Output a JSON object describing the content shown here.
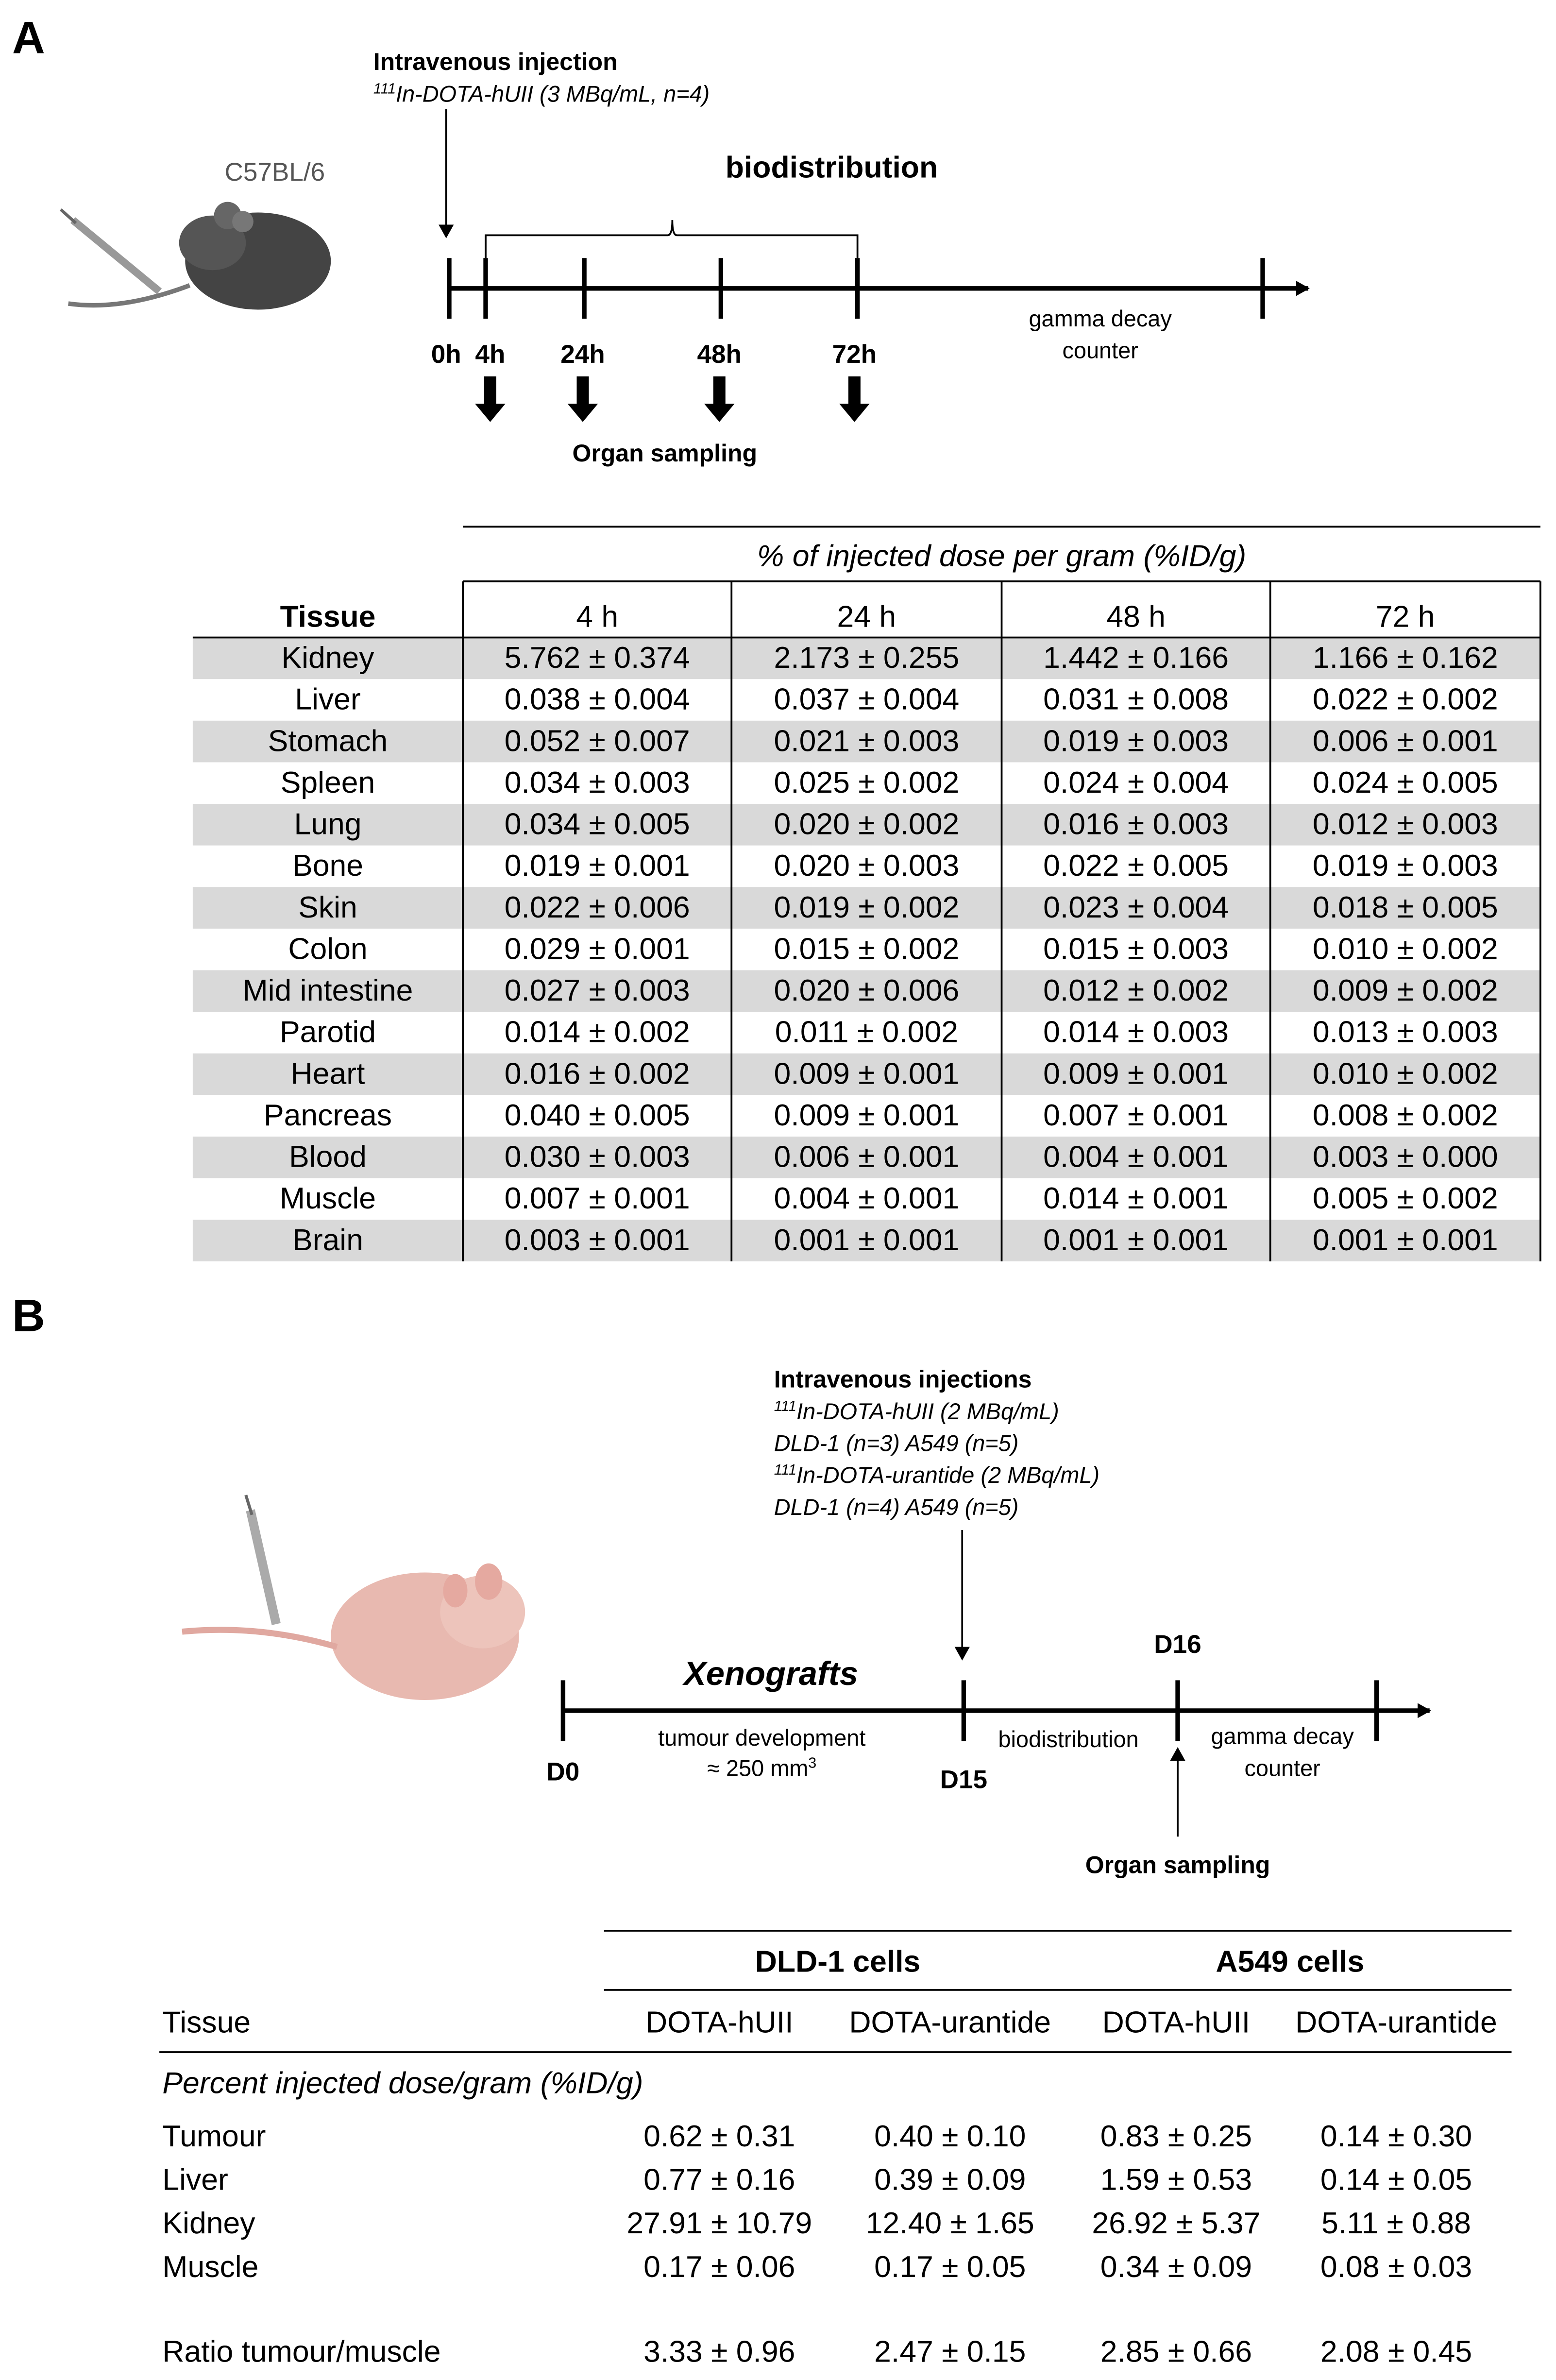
{
  "panel_a": {
    "label": "A",
    "strain": "C57BL/6",
    "injection": {
      "title": "Intravenous injection",
      "line": {
        "sup": "111",
        "text": "In-DOTA-hUII  (3 MBq/mL, n=4)"
      }
    },
    "phase": "biodistribution",
    "timepoints": [
      "0h",
      "4h",
      "24h",
      "48h",
      "72h"
    ],
    "counter": [
      "gamma decay",
      "counter"
    ],
    "sampling": "Organ sampling",
    "table": {
      "caption": "% of injected dose per gram (%ID/g)",
      "columns": [
        "Tissue",
        "4 h",
        "24 h",
        "48 h",
        "72 h"
      ],
      "rows": [
        [
          "Kidney",
          "5.762 ± 0.374",
          "2.173 ± 0.255",
          "1.442 ± 0.166",
          "1.166 ± 0.162"
        ],
        [
          "Liver",
          "0.038 ± 0.004",
          "0.037 ± 0.004",
          "0.031 ± 0.008",
          "0.022 ± 0.002"
        ],
        [
          "Stomach",
          "0.052 ± 0.007",
          "0.021 ± 0.003",
          "0.019 ± 0.003",
          "0.006 ± 0.001"
        ],
        [
          "Spleen",
          "0.034 ± 0.003",
          "0.025 ± 0.002",
          "0.024 ± 0.004",
          "0.024 ± 0.005"
        ],
        [
          "Lung",
          "0.034 ± 0.005",
          "0.020 ± 0.002",
          "0.016 ± 0.003",
          "0.012 ± 0.003"
        ],
        [
          "Bone",
          "0.019 ± 0.001",
          "0.020 ± 0.003",
          "0.022 ± 0.005",
          "0.019 ± 0.003"
        ],
        [
          "Skin",
          "0.022 ± 0.006",
          "0.019 ± 0.002",
          "0.023 ± 0.004",
          "0.018 ± 0.005"
        ],
        [
          "Colon",
          "0.029 ± 0.001",
          "0.015 ± 0.002",
          "0.015 ± 0.003",
          "0.010 ± 0.002"
        ],
        [
          "Mid intestine",
          "0.027 ± 0.003",
          "0.020 ± 0.006",
          "0.012 ± 0.002",
          "0.009 ± 0.002"
        ],
        [
          "Parotid",
          "0.014 ± 0.002",
          "0.011 ± 0.002",
          "0.014 ± 0.003",
          "0.013 ± 0.003"
        ],
        [
          "Heart",
          "0.016 ± 0.002",
          "0.009 ± 0.001",
          "0.009 ± 0.001",
          "0.010 ± 0.002"
        ],
        [
          "Pancreas",
          "0.040 ± 0.005",
          "0.009 ± 0.001",
          "0.007 ± 0.001",
          "0.008 ± 0.002"
        ],
        [
          "Blood",
          "0.030 ± 0.003",
          "0.006 ± 0.001",
          "0.004 ± 0.001",
          "0.003 ± 0.000"
        ],
        [
          "Muscle",
          "0.007 ± 0.001",
          "0.004 ± 0.001",
          "0.014 ± 0.001",
          "0.005 ± 0.002"
        ],
        [
          "Brain",
          "0.003 ± 0.001",
          "0.001 ± 0.001",
          "0.001 ± 0.001",
          "0.001 ± 0.001"
        ]
      ]
    }
  },
  "panel_b": {
    "label": "B",
    "injection": {
      "title": "Intravenous injections",
      "lines": [
        {
          "sup": "111",
          "text": "In-DOTA-hUII  (2 MBq/mL)"
        },
        {
          "text": "DLD-1  (n=3)  A549  (n=5)"
        },
        {
          "sup": "111",
          "text": "In-DOTA-urantide  (2 MBq/mL)"
        },
        {
          "text": "DLD-1  (n=4)  A549  (n=5)"
        }
      ]
    },
    "xenografts": "Xenografts",
    "days": {
      "d0": "D0",
      "d15": "D15",
      "d16": "D16"
    },
    "development": [
      "tumour development",
      {
        "text": "≈ 250 mm",
        "sup": "3"
      }
    ],
    "phase": "biodistribution",
    "counter": [
      "gamma decay",
      "counter"
    ],
    "sampling": "Organ sampling",
    "table": {
      "groups": [
        "DLD-1 cells",
        "A549 cells"
      ],
      "columns": [
        "Tissue",
        "DOTA-hUII",
        "DOTA-urantide",
        "DOTA-hUII",
        "DOTA-urantide"
      ],
      "section": "Percent injected dose/gram (%ID/g)",
      "rows": [
        [
          "Tumour",
          "0.62 ± 0.31",
          "0.40 ± 0.10",
          "0.83 ± 0.25",
          "0.14 ± 0.30"
        ],
        [
          "Liver",
          "0.77 ± 0.16",
          "0.39 ± 0.09",
          "1.59 ± 0.53",
          "0.14 ± 0.05"
        ],
        [
          "Kidney",
          "27.91 ± 10.79",
          "12.40 ± 1.65",
          "26.92 ± 5.37",
          "5.11 ± 0.88"
        ],
        [
          "Muscle",
          "0.17 ± 0.06",
          "0.17 ± 0.05",
          "0.34 ± 0.09",
          "0.08 ± 0.03"
        ]
      ],
      "ratio": [
        "Ratio tumour/muscle",
        "3.33 ± 0.96",
        "2.47 ± 0.15",
        "2.85 ± 0.66",
        "2.08 ± 0.45"
      ]
    }
  }
}
